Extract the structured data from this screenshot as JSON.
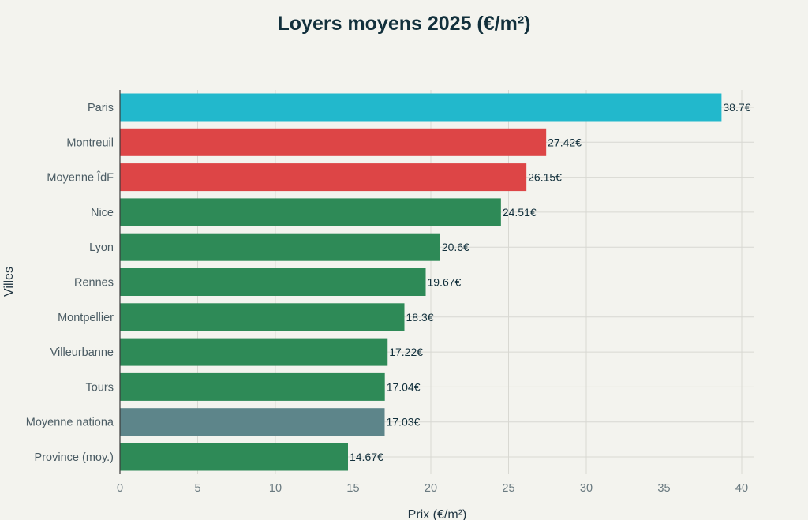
{
  "chart_data": {
    "type": "bar",
    "orientation": "horizontal",
    "title": "Loyers moyens 2025 (€/m²)",
    "xlabel": "Prix (€/m²)",
    "ylabel": "Villes",
    "xlim": [
      0,
      40.8
    ],
    "xticks": [
      0,
      5,
      10,
      15,
      20,
      25,
      30,
      35,
      40
    ],
    "grid": true,
    "value_suffix": "€",
    "categories": [
      "Paris",
      "Montreuil",
      "Moyenne ÎdF",
      "Nice",
      "Lyon",
      "Rennes",
      "Montpellier",
      "Villeurbanne",
      "Tours",
      "Moyenne nationa",
      "Province (moy.)"
    ],
    "values": [
      38.7,
      27.42,
      26.15,
      24.51,
      20.6,
      19.67,
      18.3,
      17.22,
      17.04,
      17.03,
      14.67
    ],
    "bar_colors": [
      "#22b8cc",
      "#dd4546",
      "#dd4546",
      "#2e8a57",
      "#2e8a57",
      "#2e8a57",
      "#2e8a57",
      "#2e8a57",
      "#2e8a57",
      "#5d858a",
      "#2e8a57"
    ]
  },
  "colors": {
    "background": "#f3f3ee",
    "grid": "#d8d8d2",
    "axis": "#3b3b3b",
    "text": "#12303c"
  }
}
